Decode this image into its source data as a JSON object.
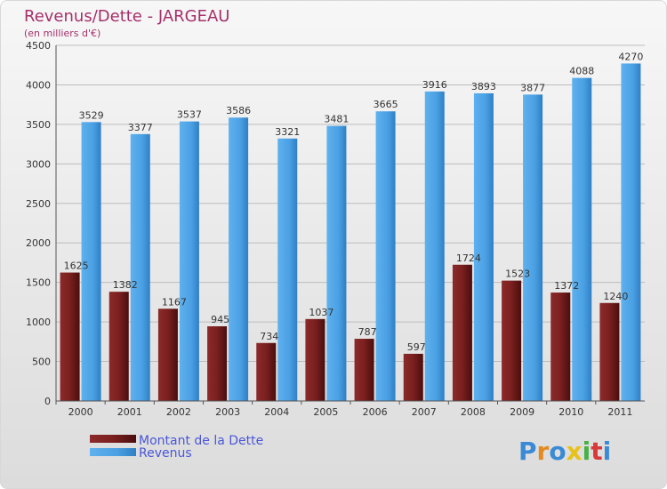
{
  "chart_data": {
    "type": "bar",
    "title": "Revenus/Dette - JARGEAU",
    "subtitle": "(en milliers d'€)",
    "categories": [
      "2000",
      "2001",
      "2002",
      "2003",
      "2004",
      "2005",
      "2006",
      "2007",
      "2008",
      "2009",
      "2010",
      "2011"
    ],
    "series": [
      {
        "name": "Montant de la Dette",
        "values": [
          1625,
          1382,
          1167,
          945,
          734,
          1037,
          787,
          597,
          1724,
          1523,
          1372,
          1240
        ],
        "color": "#7a1f1f"
      },
      {
        "name": "Revenus",
        "values": [
          3529,
          3377,
          3537,
          3586,
          3321,
          3481,
          3665,
          3916,
          3893,
          3877,
          4088,
          4270
        ],
        "color": "#4da3e6"
      }
    ],
    "ylim": [
      0,
      4500
    ],
    "yticks": [
      0,
      500,
      1000,
      1500,
      2000,
      2500,
      3000,
      3500,
      4000,
      4500
    ],
    "grid": true,
    "legend_placement": "bottom-left"
  },
  "logo": {
    "text": "Proxiti"
  }
}
